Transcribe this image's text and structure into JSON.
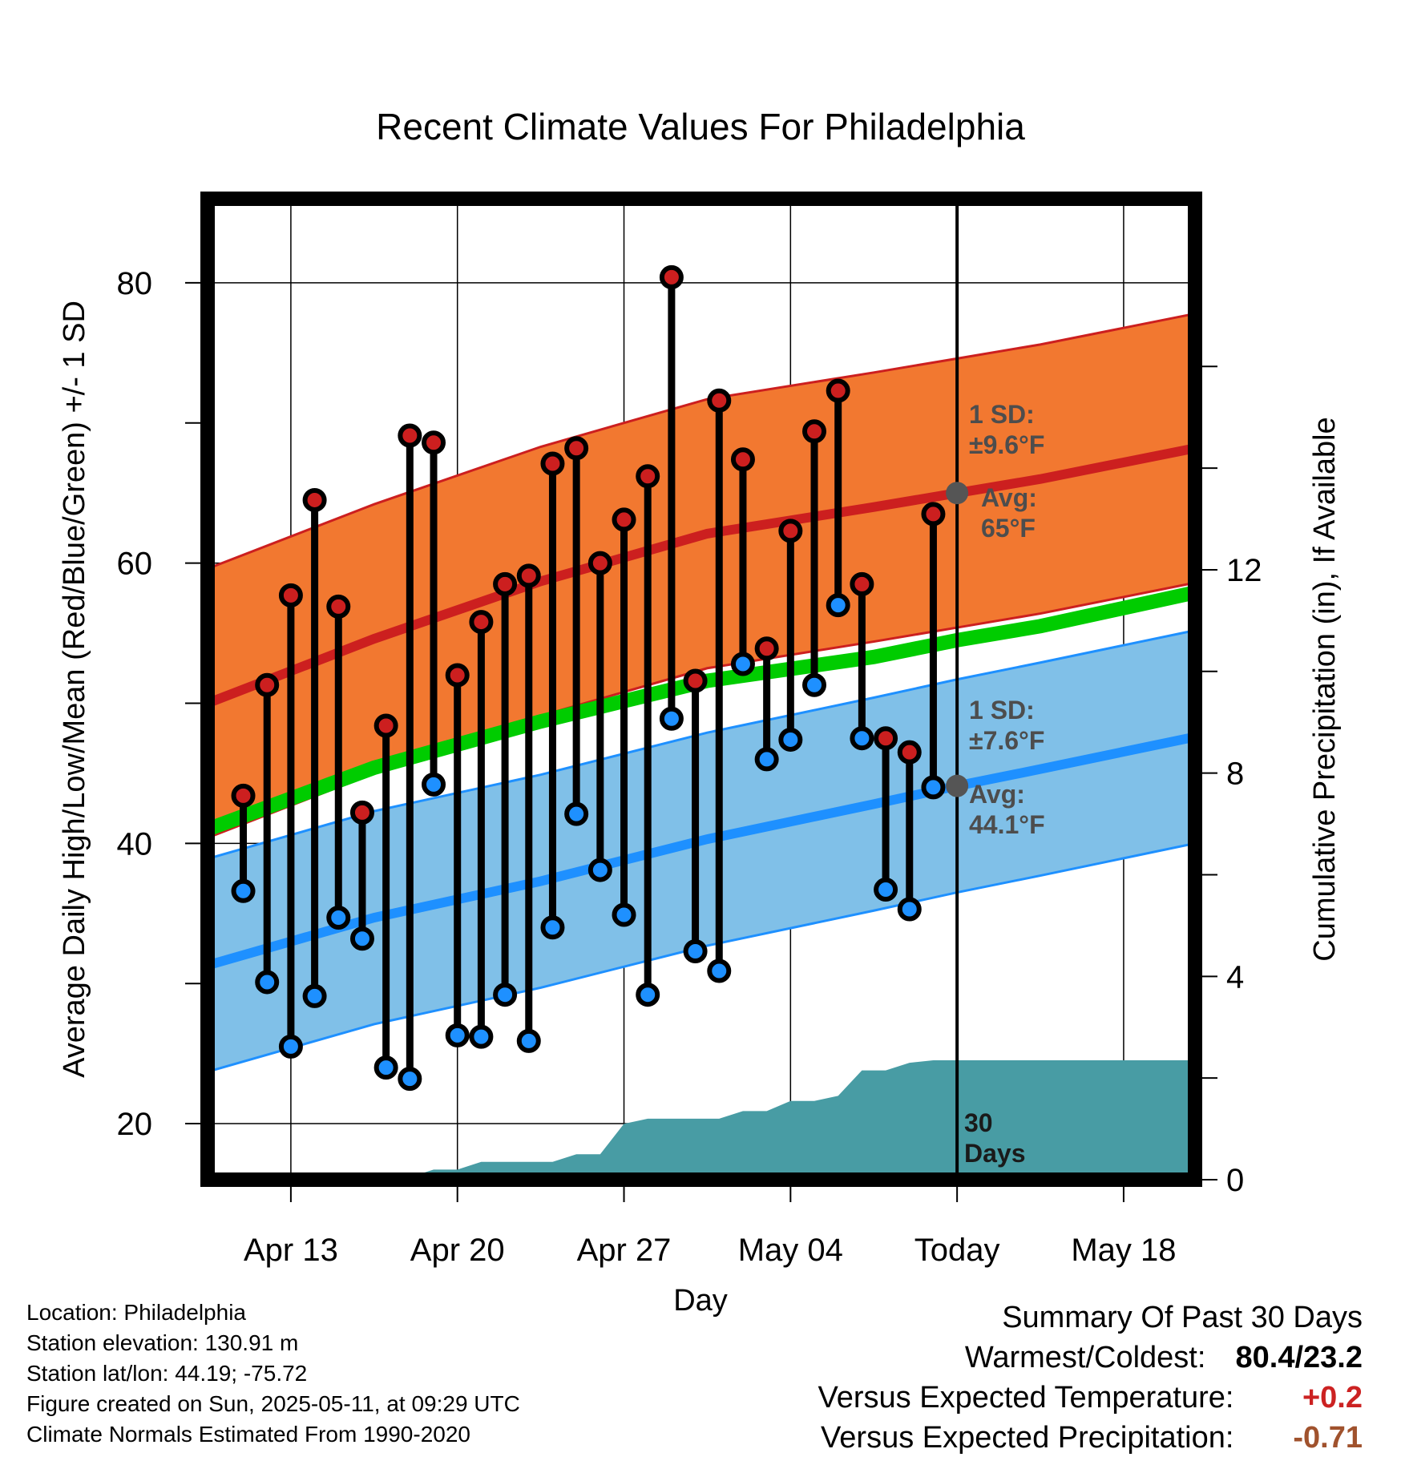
{
  "chart_data": {
    "type": "line",
    "title": "Recent Climate Values For Philadelphia",
    "xlabel": "Day",
    "ylabel_left": "Average Daily High/Low/Mean (Red/Blue/Green) +/- 1 SD",
    "ylabel_right": "Cumulative Precipitation (in), If Available",
    "x_range_days": [
      -31.5,
      10
    ],
    "ylim_left": [
      16,
      86
    ],
    "ylim_right": [
      0,
      19.3
    ],
    "x_ticks": [
      {
        "day": -28,
        "label": "Apr 13"
      },
      {
        "day": -21,
        "label": "Apr 20"
      },
      {
        "day": -14,
        "label": "Apr 27"
      },
      {
        "day": -7,
        "label": "May 04"
      },
      {
        "day": 0,
        "label": "Today"
      },
      {
        "day": 7,
        "label": "May 18"
      }
    ],
    "y_ticks_left": [
      20,
      40,
      60,
      80
    ],
    "y_ticks_right": [
      0,
      4,
      8,
      12
    ],
    "normals_days": [
      -31.5,
      -24.5,
      -17.5,
      -10.5,
      -3.5,
      0,
      3.5,
      10
    ],
    "normal_high": [
      50.0,
      54.6,
      58.7,
      62.1,
      64.0,
      65.0,
      66.0,
      68.2
    ],
    "normal_low": [
      31.3,
      34.7,
      37.3,
      40.3,
      42.8,
      44.1,
      45.3,
      47.6
    ],
    "normal_mean": [
      41.0,
      45.4,
      48.7,
      51.6,
      53.3,
      54.5,
      55.5,
      57.9
    ],
    "high_sd": 9.6,
    "low_sd": 7.6,
    "observed_days": [
      -30,
      -29,
      -28,
      -27,
      -26,
      -25,
      -24,
      -23,
      -22,
      -21,
      -20,
      -19,
      -18,
      -17,
      -16,
      -15,
      -14,
      -13,
      -12,
      -11,
      -10,
      -9,
      -8,
      -7,
      -6,
      -5,
      -4,
      -3,
      -2,
      -1
    ],
    "observed_high": [
      43.4,
      51.3,
      57.7,
      64.5,
      56.9,
      42.2,
      48.4,
      69.1,
      68.6,
      52.0,
      55.8,
      58.5,
      59.1,
      67.1,
      68.2,
      60.0,
      63.1,
      66.2,
      80.4,
      51.6,
      71.6,
      67.4,
      53.9,
      62.3,
      69.4,
      72.3,
      58.5,
      47.5,
      46.5,
      63.5
    ],
    "observed_low": [
      36.6,
      30.1,
      25.5,
      29.1,
      34.7,
      33.2,
      24.0,
      23.2,
      44.2,
      26.3,
      26.2,
      29.2,
      25.9,
      34.0,
      42.1,
      38.1,
      34.9,
      29.2,
      48.9,
      32.3,
      30.9,
      52.8,
      46.0,
      47.4,
      51.3,
      57.0,
      47.5,
      36.7,
      35.3,
      44.0
    ],
    "precip_days": [
      -31.5,
      -25,
      -23,
      -22,
      -21,
      -20,
      -19,
      -17,
      -16,
      -15,
      -14,
      -13,
      -10,
      -9,
      -8,
      -7,
      -6,
      -5,
      -4,
      -3,
      -2,
      -1,
      0,
      10
    ],
    "precip_cum": [
      0,
      0,
      0.05,
      0.2,
      0.2,
      0.35,
      0.35,
      0.35,
      0.5,
      0.5,
      1.1,
      1.2,
      1.2,
      1.35,
      1.35,
      1.55,
      1.55,
      1.65,
      2.15,
      2.15,
      2.3,
      2.35,
      2.35,
      2.35
    ],
    "today_high_sd_label": [
      "1 SD:",
      "±9.6°F"
    ],
    "today_high_avg_label": [
      "Avg:",
      "65°F"
    ],
    "today_low_sd_label": [
      "1 SD:",
      "±7.6°F"
    ],
    "today_low_avg_label": [
      "Avg:",
      "44.1°F"
    ],
    "period_label": [
      "30",
      "Days"
    ],
    "colors": {
      "high_band": "#f27830",
      "high_line": "#cc1f1f",
      "low_band": "#80c0e8",
      "low_line": "#1e90ff",
      "mean_line": "#00cc00",
      "precip": "#489ca4",
      "high_dot": "#cc1f1f",
      "low_dot": "#1e90ff",
      "marker": "#555555"
    }
  },
  "info": {
    "location": "Location: Philadelphia",
    "elevation": "Station elevation: 130.91 m",
    "latlon": "Station lat/lon: 44.19; -75.72",
    "created": "Figure created on Sun, 2025-05-11, at 09:29 UTC",
    "normals": "Climate Normals Estimated From 1990-2020"
  },
  "summary": {
    "heading": "Summary Of Past 30 Days",
    "warm_cold_label": "Warmest/Coldest:",
    "warm_cold_value": "80.4/23.2",
    "temp_label": "Versus Expected Temperature:",
    "temp_value": "+0.2",
    "temp_color": "#cc2222",
    "precip_label": "Versus Expected Precipitation:",
    "precip_value": "-0.71",
    "precip_color": "#a0522d"
  }
}
